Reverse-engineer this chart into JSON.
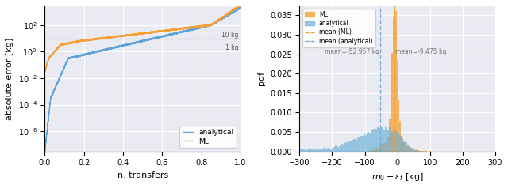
{
  "left_plot": {
    "xlabel": "n. transfers",
    "ylabel": "absolute error [kg]",
    "xlim": [
      0,
      1.0
    ],
    "ymin": 3e-08,
    "ymax": 3000,
    "hline_10kg": 10,
    "hline_1kg": 1,
    "hline_10kg_label": "10 kg",
    "hline_1kg_label": "1 kg",
    "analytical_color": "#5ba3d9",
    "ml_color": "#f5a030",
    "legend_analytical": "analytical",
    "legend_ml": "ML"
  },
  "right_plot": {
    "xlabel": "$m_0 - \\varepsilon_f$ [kg]",
    "ylabel": "pdf",
    "xlim": [
      -300,
      300
    ],
    "ylim": [
      0,
      0.0375
    ],
    "mean_ml": -9.475,
    "mean_analytical": -52.957,
    "mean_ml_label": "mean=-9.475 kg",
    "mean_analytical_label": "mean=-52.957 kg",
    "ml_color": "#f5a030",
    "analytical_color": "#6aaed6",
    "ml_alpha": 0.75,
    "analytical_alpha": 0.65,
    "legend_ml": "ML",
    "legend_analytical": "analytical",
    "legend_mean_ml": "mean (ML)",
    "legend_mean_analytical": "mean (analytical)"
  },
  "background_color": "#eaeaf2"
}
